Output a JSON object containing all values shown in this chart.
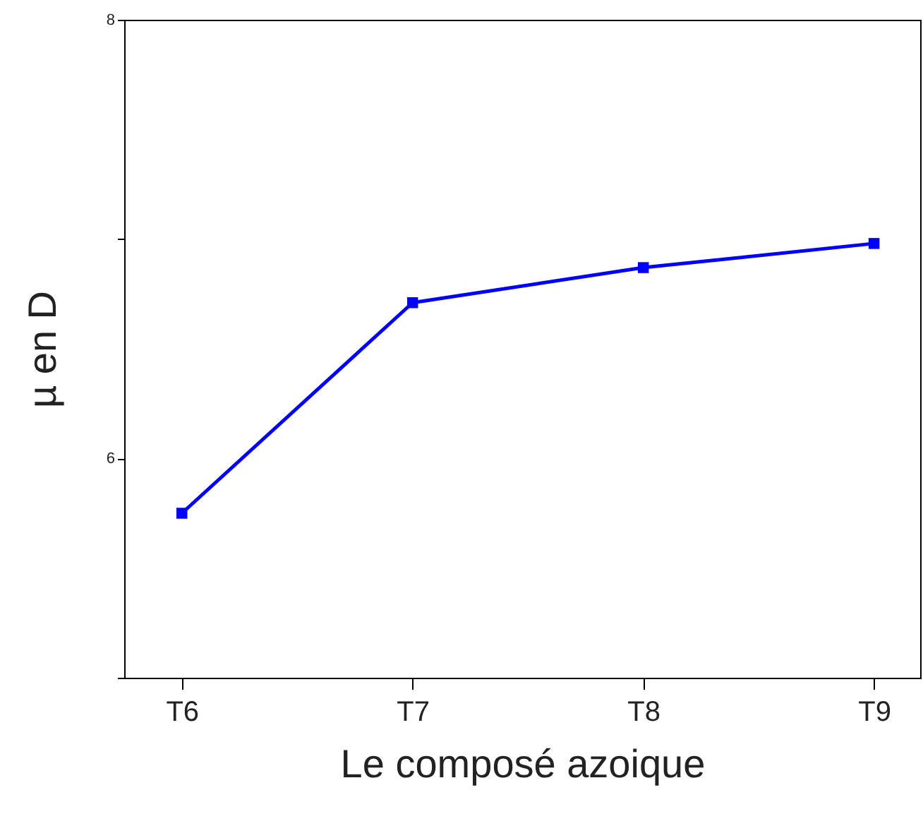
{
  "chart_data": {
    "type": "line",
    "xlabel": "Le composé azoique",
    "ylabel": "µ en D",
    "categories": [
      "T6",
      "T7",
      "T8",
      "T9"
    ],
    "series": [
      {
        "color": "#0000ff",
        "values": [
          5.75,
          6.71,
          6.87,
          6.98
        ]
      }
    ],
    "ylim": [
      5,
      8
    ],
    "yticks": [
      {
        "value": 5,
        "label": null
      },
      6,
      {
        "value": 7,
        "label": null
      },
      8
    ],
    "marker": "square",
    "line_style": "solid",
    "grid": false
  }
}
